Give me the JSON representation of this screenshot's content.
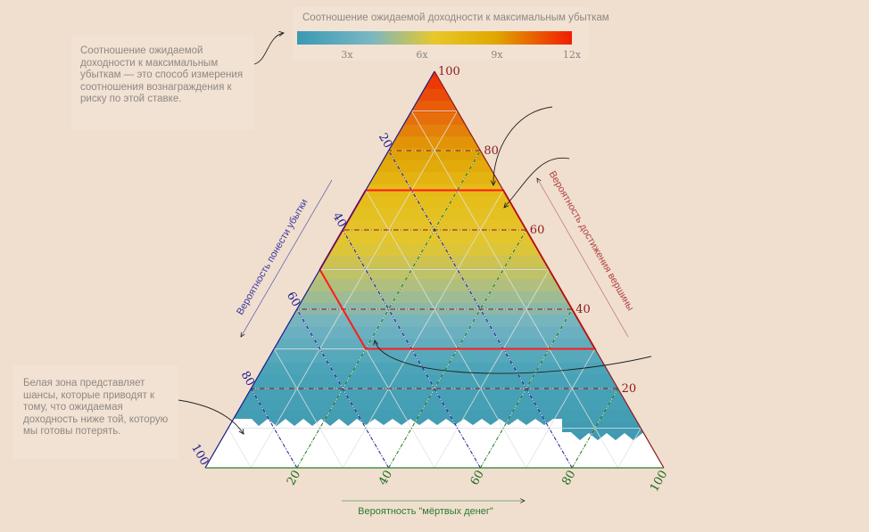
{
  "annotations": {
    "ratio_note": "Соотношение ожидаемой доходности к максимальным убыткам — это способ измерения соотношения вознаграждения к риску по этой ставке.",
    "white_zone_note": "Белая зона представляет шансы, которые приводят к тому, что ожидаемая доходность ниже той, которую мы готовы потерять."
  },
  "chart_data": {
    "type": "ternary",
    "colorbar": {
      "title": "Соотношение ожидаемой доходности к максимальным убыткам",
      "ticks": [
        "3x",
        "6x",
        "9x",
        "12x"
      ],
      "colors": [
        "#3a9ab3",
        "#7ab7c3",
        "#e8c82a",
        "#e0a800",
        "#f21c00"
      ]
    },
    "axes": {
      "peak": {
        "label": "Вероятность достижения вершины",
        "ticks": [
          "20",
          "40",
          "60",
          "80",
          "100"
        ],
        "color": "#8b1a1a"
      },
      "loss": {
        "label": "Вероятность понести убытки",
        "ticks": [
          "20",
          "40",
          "60",
          "80",
          "100"
        ],
        "color": "#1a1a8b"
      },
      "dead": {
        "label": "Вероятность \"мёртвых денег\"",
        "ticks": [
          "20",
          "40",
          "60",
          "80",
          "100"
        ],
        "color": "#1a6b1a"
      }
    },
    "gridlines": [
      20,
      40,
      60,
      80
    ],
    "highlight_region": {
      "peak_min": 30,
      "peak_max": 70,
      "loss_max": 50,
      "color": "#ff1a1a"
    },
    "white_zone_peak_below": 12,
    "color_by_peak": [
      {
        "peak": 0,
        "color": "#3a96ae"
      },
      {
        "peak": 25,
        "color": "#4aa3b8"
      },
      {
        "peak": 37,
        "color": "#74b4c2"
      },
      {
        "peak": 47,
        "color": "#b4c07a"
      },
      {
        "peak": 57,
        "color": "#e4c62e"
      },
      {
        "peak": 70,
        "color": "#e6bc18"
      },
      {
        "peak": 80,
        "color": "#e0a204"
      },
      {
        "peak": 88,
        "color": "#e6720c"
      },
      {
        "peak": 100,
        "color": "#ef2a04"
      }
    ]
  }
}
